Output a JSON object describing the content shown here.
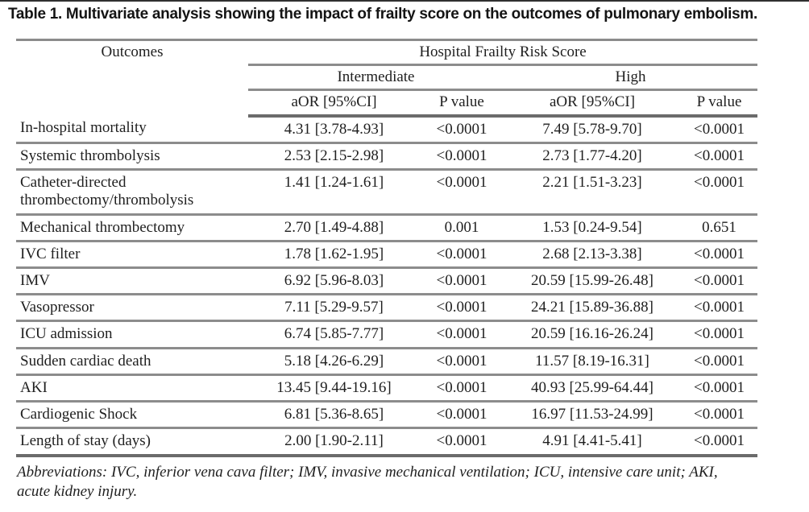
{
  "title": "Table 1. Multivariate analysis showing the impact of frailty score on the outcomes of pulmonary embolism.",
  "table": {
    "header": {
      "outcomes": "Outcomes",
      "group": "Hospital Frailty Risk Score",
      "subgroups": [
        "Intermediate",
        "High"
      ],
      "columns": [
        "aOR [95%CI]",
        "P value",
        "aOR [95%CI]",
        "P value"
      ]
    },
    "rows": [
      {
        "outcome": "In-hospital mortality",
        "int_aor": "4.31 [3.78-4.93]",
        "int_p": "<0.0001",
        "high_aor": "7.49 [5.78-9.70]",
        "high_p": "<0.0001"
      },
      {
        "outcome": "Systemic thrombolysis",
        "int_aor": "2.53 [2.15-2.98]",
        "int_p": "<0.0001",
        "high_aor": "2.73 [1.77-4.20]",
        "high_p": "<0.0001"
      },
      {
        "outcome": "Catheter-directed thrombectomy/thrombolysis",
        "int_aor": "1.41 [1.24-1.61]",
        "int_p": "<0.0001",
        "high_aor": "2.21 [1.51-3.23]",
        "high_p": "<0.0001"
      },
      {
        "outcome": "Mechanical thrombectomy",
        "int_aor": "2.70 [1.49-4.88]",
        "int_p": "0.001",
        "high_aor": "1.53 [0.24-9.54]",
        "high_p": "0.651"
      },
      {
        "outcome": "IVC filter",
        "int_aor": "1.78 [1.62-1.95]",
        "int_p": "<0.0001",
        "high_aor": "2.68 [2.13-3.38]",
        "high_p": "<0.0001"
      },
      {
        "outcome": "IMV",
        "int_aor": "6.92 [5.96-8.03]",
        "int_p": "<0.0001",
        "high_aor": "20.59 [15.99-26.48]",
        "high_p": "<0.0001"
      },
      {
        "outcome": "Vasopressor",
        "int_aor": "7.11 [5.29-9.57]",
        "int_p": "<0.0001",
        "high_aor": "24.21 [15.89-36.88]",
        "high_p": "<0.0001"
      },
      {
        "outcome": "ICU admission",
        "int_aor": "6.74 [5.85-7.77]",
        "int_p": "<0.0001",
        "high_aor": "20.59 [16.16-26.24]",
        "high_p": "<0.0001"
      },
      {
        "outcome": "Sudden cardiac death",
        "int_aor": "5.18 [4.26-6.29]",
        "int_p": "<0.0001",
        "high_aor": "11.57 [8.19-16.31]",
        "high_p": "<0.0001"
      },
      {
        "outcome": "AKI",
        "int_aor": "13.45 [9.44-19.16]",
        "int_p": "<0.0001",
        "high_aor": "40.93 [25.99-64.44]",
        "high_p": "<0.0001"
      },
      {
        "outcome": "Cardiogenic Shock",
        "int_aor": "6.81 [5.36-8.65]",
        "int_p": "<0.0001",
        "high_aor": "16.97 [11.53-24.99]",
        "high_p": "<0.0001"
      },
      {
        "outcome": "Length of stay (days)",
        "int_aor": "2.00 [1.90-2.11]",
        "int_p": "<0.0001",
        "high_aor": "4.91 [4.41-5.41]",
        "high_p": "<0.0001"
      }
    ],
    "footnote": "Abbreviations: IVC, inferior vena cava filter; IMV, invasive mechanical ventilation; ICU, intensive care unit; AKI, acute kidney injury."
  },
  "colors": {
    "rule_gray": "#8c8c8c",
    "rule_dark": "#6b6b6b",
    "text": "#1f1f1f"
  }
}
